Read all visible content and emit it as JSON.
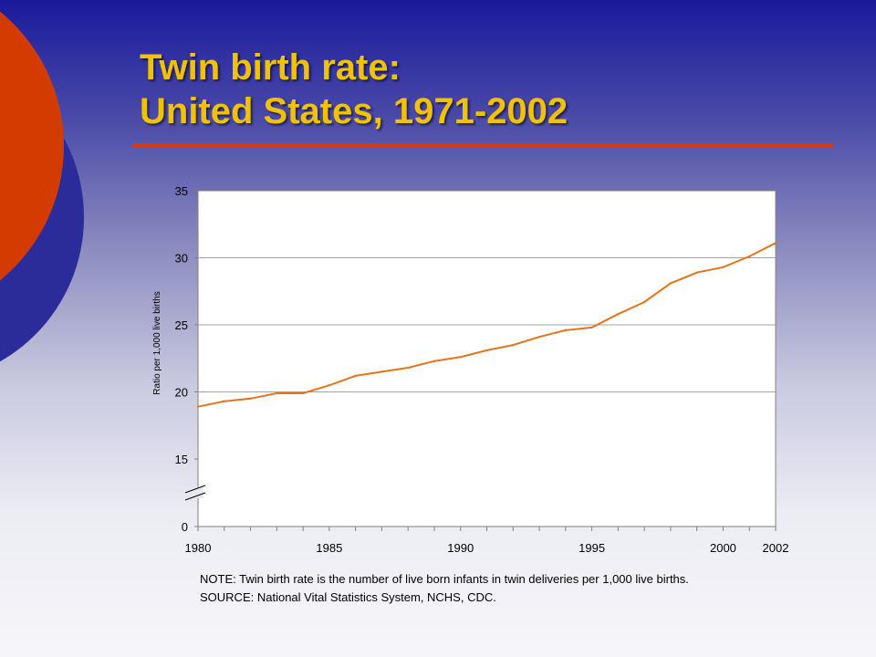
{
  "slide": {
    "title_line1": "Twin birth rate:",
    "title_line2": "United States, 1971-2002",
    "note": "NOTE: Twin birth rate is the number of live born infants in twin deliveries per 1,000  live births.",
    "source": "SOURCE: National Vital Statistics System, NCHS, CDC."
  },
  "colors": {
    "title": "#f2c200",
    "accent_rule": "#d33b17",
    "circle_orange": "#d33b00",
    "circle_blue": "#2b2b9a",
    "series_line": "#e2761c",
    "gridline": "#a0a0a0"
  },
  "chart_data": {
    "type": "line",
    "title": "",
    "xlabel": "",
    "ylabel": "Ratio per 1,000 live births",
    "x_ticks": [
      "1980",
      "1985",
      "1990",
      "1995",
      "2000",
      "2002"
    ],
    "y_ticks": [
      "0",
      "15",
      "20",
      "25",
      "30",
      "35"
    ],
    "ylim": [
      15,
      35
    ],
    "y_axis_break": "between 0 and 15",
    "grid": true,
    "legend": "none",
    "series": [
      {
        "x": [
          1980,
          1981,
          1982,
          1983,
          1984,
          1985,
          1986,
          1987,
          1988,
          1989,
          1990,
          1991,
          1992,
          1993,
          1994,
          1995,
          1996,
          1997,
          1998,
          1999,
          2000,
          2001,
          2002
        ],
        "values": [
          18.9,
          19.3,
          19.5,
          19.9,
          19.9,
          20.5,
          21.2,
          21.5,
          21.8,
          22.3,
          22.6,
          23.1,
          23.5,
          24.1,
          24.6,
          24.8,
          25.8,
          26.7,
          28.1,
          28.9,
          29.3,
          30.1,
          31.1
        ]
      }
    ]
  }
}
